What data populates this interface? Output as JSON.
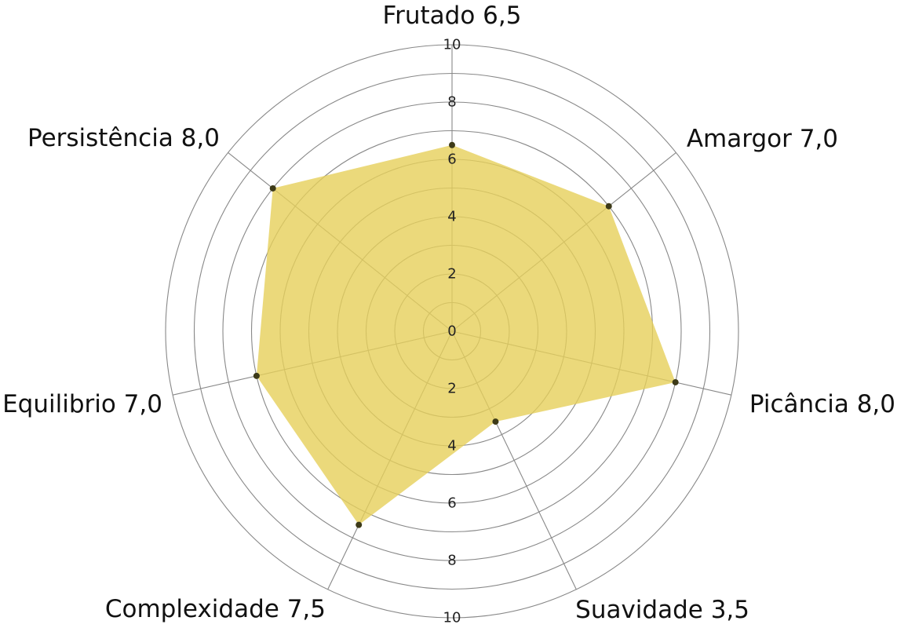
{
  "chart_data": {
    "type": "radar",
    "rmax": 10,
    "fill_color": "#e6cf5a",
    "point_color": "#3d3a18",
    "grid_color": "#888888",
    "axes": [
      {
        "name": "Frutado",
        "value": 6.5,
        "label": "Frutado 6,5"
      },
      {
        "name": "Amargor",
        "value": 7.0,
        "label": "Amargor 7,0"
      },
      {
        "name": "Picância",
        "value": 8.0,
        "label": "Picância 8,0"
      },
      {
        "name": "Suavidade",
        "value": 3.5,
        "label": "Suavidade 3,5"
      },
      {
        "name": "Complexidade",
        "value": 7.5,
        "label": "Complexidade 7,5"
      },
      {
        "name": "Equilibrio",
        "value": 7.0,
        "label": "Equilibrio 7,0"
      },
      {
        "name": "Persistência",
        "value": 8.0,
        "label": "Persistência 8,0"
      }
    ],
    "ticks_up": [
      "0",
      "2",
      "4",
      "6",
      "8",
      "10"
    ],
    "ticks_down": [
      "2",
      "4",
      "6",
      "8",
      "10"
    ],
    "tick_values_up": [
      0,
      2,
      4,
      6,
      8,
      10
    ],
    "tick_values_down": [
      2,
      4,
      6,
      8,
      10
    ]
  }
}
